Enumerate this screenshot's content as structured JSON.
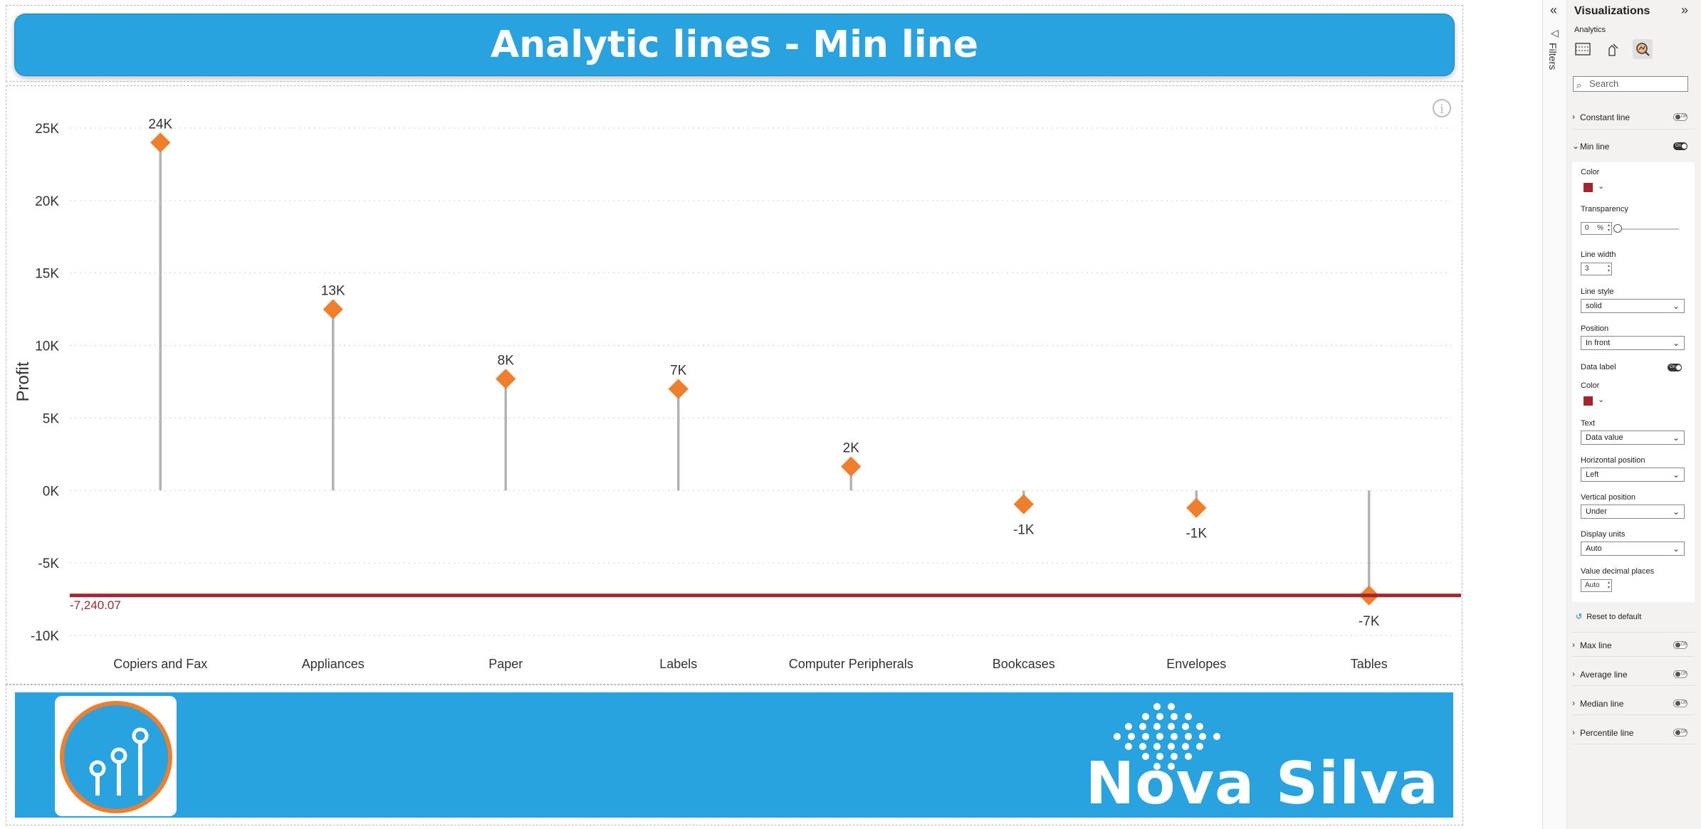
{
  "report": {
    "title": "Analytic lines - Min line",
    "brand_name": "Nova Silva"
  },
  "chart_data": {
    "type": "lollipop",
    "categories": [
      "Copiers and Fax",
      "Appliances",
      "Paper",
      "Labels",
      "Computer Peripherals",
      "Bookcases",
      "Envelopes",
      "Tables"
    ],
    "values": [
      24000,
      12500,
      7700,
      7000,
      1650,
      -950,
      -1200,
      -7240.07
    ],
    "data_labels": [
      "24K",
      "13K",
      "8K",
      "7K",
      "2K",
      "-1K",
      "-1K",
      "-7K"
    ],
    "ylabel": "Profit",
    "ylim": [
      -10000,
      25000
    ],
    "yticks": [
      25000,
      20000,
      15000,
      10000,
      5000,
      0,
      -5000,
      -10000
    ],
    "ytick_labels": [
      "25K",
      "20K",
      "15K",
      "10K",
      "5K",
      "0K",
      "-5K",
      "-10K"
    ],
    "grid": true,
    "min_line": {
      "value": -7240.07,
      "label": "-7,240.07",
      "color": "#a4262c"
    },
    "colors": {
      "marker": "#f07f2d",
      "stem": "#b3b3b3",
      "grid": "#d8d8d8"
    }
  },
  "filters_pane": {
    "label": "Filters"
  },
  "visualizations_pane": {
    "title": "Visualizations",
    "subtitle": "Analytics",
    "search_placeholder": "Search",
    "sections": {
      "constant_line": {
        "label": "Constant line",
        "toggle": "Off"
      },
      "min_line": {
        "label": "Min line",
        "toggle": "On"
      },
      "max_line": {
        "label": "Max line",
        "toggle": "Off"
      },
      "average_line": {
        "label": "Average line",
        "toggle": "Off"
      },
      "median_line": {
        "label": "Median line",
        "toggle": "Off"
      },
      "percentile_line": {
        "label": "Percentile line",
        "toggle": "Off"
      }
    },
    "min_line_settings": {
      "color_label": "Color",
      "transparency_label": "Transparency",
      "transparency_value": "0",
      "transparency_unit": "%",
      "line_width_label": "Line width",
      "line_width_value": "3",
      "line_style_label": "Line style",
      "line_style_value": "solid",
      "position_label": "Position",
      "position_value": "In front",
      "data_label_label": "Data label",
      "data_label_toggle": "On",
      "label_color_label": "Color",
      "text_label": "Text",
      "text_value": "Data value",
      "horizontal_position_label": "Horizontal position",
      "horizontal_position_value": "Left",
      "vertical_position_label": "Vertical position",
      "vertical_position_value": "Under",
      "display_units_label": "Display units",
      "display_units_value": "Auto",
      "decimal_places_label": "Value decimal places",
      "decimal_places_value": "Auto"
    },
    "reset_label": "Reset to default"
  }
}
